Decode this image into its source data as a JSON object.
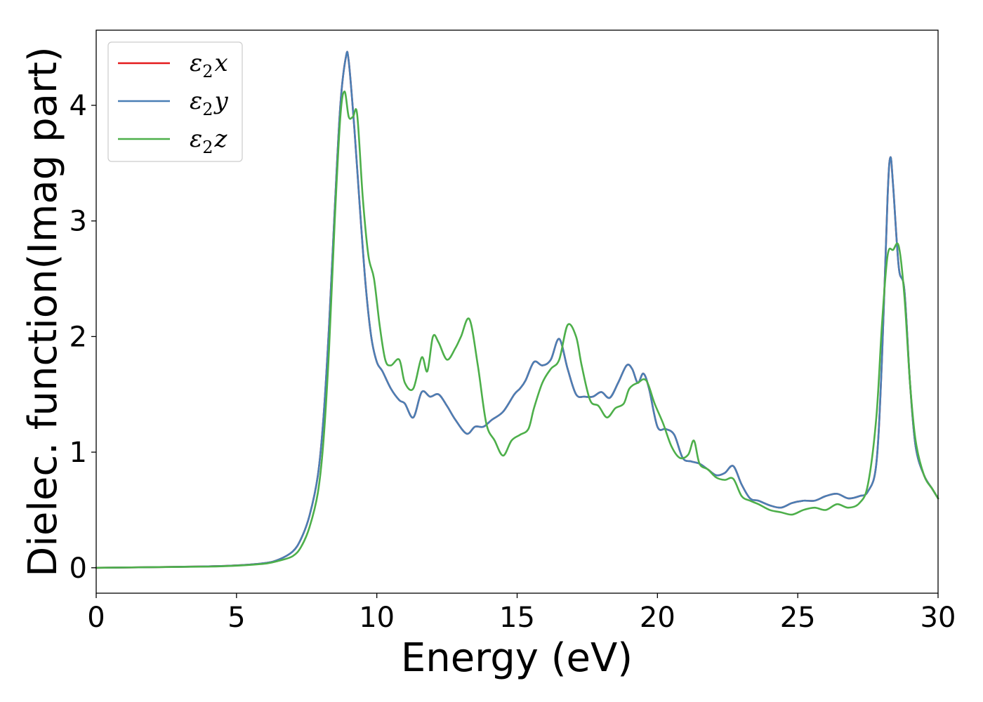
{
  "chart_data": {
    "type": "line",
    "xlabel": "Energy (eV)",
    "ylabel": "Dielec. function(Imag part)",
    "xlim": [
      0,
      30
    ],
    "ylim": [
      -0.22,
      4.65
    ],
    "xticks": [
      0,
      5,
      10,
      15,
      20,
      25,
      30
    ],
    "yticks": [
      0,
      1,
      2,
      3,
      4
    ],
    "grid": false,
    "legend_position": "top-left",
    "series": [
      {
        "name": "ε₂x",
        "symbol": "ε",
        "sub": "2",
        "axis": "x",
        "color": "#e41a1c",
        "x": [
          0,
          2,
          4,
          5,
          6,
          6.5,
          7,
          7.3,
          7.6,
          7.9,
          8.1,
          8.3,
          8.5,
          8.7,
          8.9,
          9.0,
          9.2,
          9.4,
          9.6,
          9.8,
          10.0,
          10.2,
          10.5,
          10.8,
          11.0,
          11.3,
          11.6,
          11.9,
          12.2,
          12.5,
          12.8,
          13.2,
          13.5,
          13.8,
          14.1,
          14.5,
          14.9,
          15.1,
          15.3,
          15.6,
          15.9,
          16.2,
          16.5,
          16.8,
          17.1,
          17.4,
          17.7,
          18.0,
          18.3,
          18.6,
          18.9,
          19.1,
          19.3,
          19.5,
          19.7,
          20.0,
          20.3,
          20.6,
          20.9,
          21.2,
          21.5,
          21.8,
          22.1,
          22.4,
          22.7,
          23.0,
          23.3,
          23.6,
          24.0,
          24.4,
          24.8,
          25.2,
          25.6,
          26.0,
          26.4,
          26.8,
          27.2,
          27.5,
          27.8,
          28.0,
          28.2,
          28.3,
          28.4,
          28.6,
          28.8,
          29.0,
          29.2,
          29.5,
          29.8,
          30.0
        ],
        "y": [
          0.0,
          0.005,
          0.012,
          0.02,
          0.04,
          0.07,
          0.14,
          0.25,
          0.45,
          0.8,
          1.3,
          2.1,
          3.1,
          4.0,
          4.42,
          4.38,
          3.8,
          3.1,
          2.45,
          2.0,
          1.78,
          1.7,
          1.55,
          1.45,
          1.42,
          1.3,
          1.52,
          1.48,
          1.5,
          1.4,
          1.28,
          1.16,
          1.22,
          1.22,
          1.28,
          1.35,
          1.5,
          1.55,
          1.62,
          1.78,
          1.75,
          1.8,
          1.98,
          1.72,
          1.5,
          1.48,
          1.48,
          1.52,
          1.47,
          1.6,
          1.75,
          1.72,
          1.6,
          1.68,
          1.55,
          1.22,
          1.2,
          1.15,
          0.95,
          0.92,
          0.9,
          0.85,
          0.8,
          0.82,
          0.88,
          0.72,
          0.6,
          0.58,
          0.54,
          0.52,
          0.56,
          0.58,
          0.58,
          0.62,
          0.64,
          0.6,
          0.62,
          0.66,
          0.9,
          1.8,
          3.2,
          3.55,
          3.3,
          2.6,
          2.4,
          1.6,
          1.05,
          0.8,
          0.68,
          0.6
        ]
      },
      {
        "name": "ε₂y",
        "symbol": "ε",
        "sub": "2",
        "axis": "y",
        "color": "#4a7fb5",
        "x": [
          0,
          2,
          4,
          5,
          6,
          6.5,
          7,
          7.3,
          7.6,
          7.9,
          8.1,
          8.3,
          8.5,
          8.7,
          8.9,
          9.0,
          9.2,
          9.4,
          9.6,
          9.8,
          10.0,
          10.2,
          10.5,
          10.8,
          11.0,
          11.3,
          11.6,
          11.9,
          12.2,
          12.5,
          12.8,
          13.2,
          13.5,
          13.8,
          14.1,
          14.5,
          14.9,
          15.1,
          15.3,
          15.6,
          15.9,
          16.2,
          16.5,
          16.8,
          17.1,
          17.4,
          17.7,
          18.0,
          18.3,
          18.6,
          18.9,
          19.1,
          19.3,
          19.5,
          19.7,
          20.0,
          20.3,
          20.6,
          20.9,
          21.2,
          21.5,
          21.8,
          22.1,
          22.4,
          22.7,
          23.0,
          23.3,
          23.6,
          24.0,
          24.4,
          24.8,
          25.2,
          25.6,
          26.0,
          26.4,
          26.8,
          27.2,
          27.5,
          27.8,
          28.0,
          28.2,
          28.3,
          28.4,
          28.6,
          28.8,
          29.0,
          29.2,
          29.5,
          29.8,
          30.0
        ],
        "y": [
          0.0,
          0.005,
          0.012,
          0.02,
          0.04,
          0.07,
          0.14,
          0.25,
          0.45,
          0.8,
          1.3,
          2.1,
          3.1,
          4.0,
          4.42,
          4.38,
          3.8,
          3.1,
          2.45,
          2.0,
          1.78,
          1.7,
          1.55,
          1.45,
          1.42,
          1.3,
          1.52,
          1.48,
          1.5,
          1.4,
          1.28,
          1.16,
          1.22,
          1.22,
          1.28,
          1.35,
          1.5,
          1.55,
          1.62,
          1.78,
          1.75,
          1.8,
          1.98,
          1.72,
          1.5,
          1.48,
          1.48,
          1.52,
          1.47,
          1.6,
          1.75,
          1.72,
          1.6,
          1.68,
          1.55,
          1.22,
          1.2,
          1.15,
          0.95,
          0.92,
          0.9,
          0.85,
          0.8,
          0.82,
          0.88,
          0.72,
          0.6,
          0.58,
          0.54,
          0.52,
          0.56,
          0.58,
          0.58,
          0.62,
          0.64,
          0.6,
          0.62,
          0.66,
          0.9,
          1.8,
          3.2,
          3.55,
          3.3,
          2.6,
          2.4,
          1.6,
          1.05,
          0.8,
          0.68,
          0.6
        ]
      },
      {
        "name": "ε₂z",
        "symbol": "ε",
        "sub": "2",
        "axis": "z",
        "color": "#4daf4a",
        "x": [
          0,
          2,
          4,
          5,
          6,
          6.5,
          7,
          7.3,
          7.6,
          7.9,
          8.1,
          8.3,
          8.5,
          8.7,
          8.85,
          9.0,
          9.15,
          9.3,
          9.5,
          9.7,
          9.9,
          10.1,
          10.3,
          10.5,
          10.8,
          11.0,
          11.3,
          11.6,
          11.8,
          12.0,
          12.2,
          12.5,
          12.8,
          13.0,
          13.3,
          13.6,
          13.9,
          14.2,
          14.5,
          14.8,
          15.1,
          15.4,
          15.6,
          15.9,
          16.2,
          16.5,
          16.8,
          17.1,
          17.3,
          17.6,
          17.9,
          18.2,
          18.5,
          18.8,
          19.0,
          19.3,
          19.6,
          19.9,
          20.2,
          20.5,
          20.8,
          21.1,
          21.3,
          21.5,
          21.8,
          22.1,
          22.4,
          22.7,
          23.0,
          23.3,
          23.6,
          24.0,
          24.4,
          24.8,
          25.2,
          25.6,
          26.0,
          26.4,
          26.8,
          27.2,
          27.5,
          27.8,
          28.0,
          28.2,
          28.4,
          28.6,
          28.8,
          29.0,
          29.2,
          29.5,
          29.8,
          30.0
        ],
        "y": [
          0.0,
          0.005,
          0.01,
          0.018,
          0.035,
          0.06,
          0.1,
          0.18,
          0.35,
          0.65,
          1.1,
          1.9,
          3.0,
          3.9,
          4.12,
          3.9,
          3.9,
          3.92,
          3.2,
          2.7,
          2.5,
          2.1,
          1.8,
          1.75,
          1.8,
          1.6,
          1.55,
          1.82,
          1.7,
          2.0,
          1.95,
          1.8,
          1.9,
          2.0,
          2.15,
          1.75,
          1.25,
          1.1,
          0.97,
          1.1,
          1.15,
          1.2,
          1.38,
          1.6,
          1.72,
          1.8,
          2.1,
          2.0,
          1.75,
          1.45,
          1.4,
          1.3,
          1.38,
          1.42,
          1.55,
          1.6,
          1.62,
          1.42,
          1.25,
          1.05,
          0.95,
          0.98,
          1.1,
          0.9,
          0.85,
          0.78,
          0.76,
          0.77,
          0.62,
          0.58,
          0.55,
          0.5,
          0.48,
          0.46,
          0.5,
          0.52,
          0.5,
          0.55,
          0.52,
          0.56,
          0.72,
          1.3,
          2.1,
          2.7,
          2.75,
          2.78,
          2.35,
          1.6,
          1.1,
          0.8,
          0.68,
          0.6
        ]
      }
    ]
  }
}
